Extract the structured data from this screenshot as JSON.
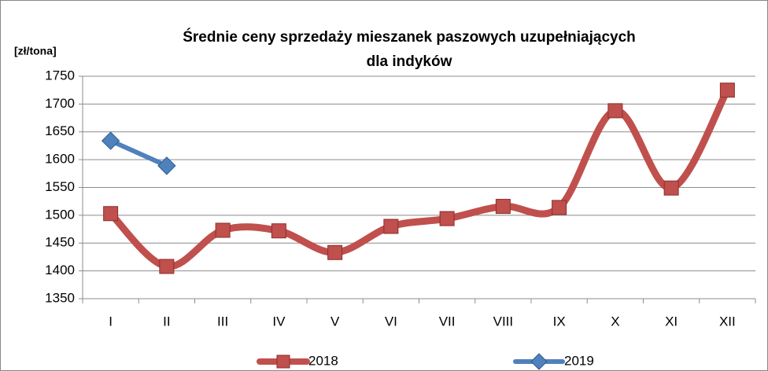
{
  "chart_data": {
    "type": "line",
    "title": [
      "Średnie ceny sprzedaży mieszanek paszowych uzupełniających",
      "dla indyków"
    ],
    "y_label": "[zł/tona]",
    "categories": [
      "I",
      "II",
      "III",
      "IV",
      "V",
      "VI",
      "VII",
      "VIII",
      "IX",
      "X",
      "XI",
      "XII"
    ],
    "series": [
      {
        "name": "2018",
        "color": "#c0504d",
        "marker": "square",
        "smooth": true,
        "values": [
          1503,
          1408,
          1473,
          1472,
          1433,
          1480,
          1494,
          1516,
          1514,
          1688,
          1549,
          1725
        ]
      },
      {
        "name": "2019",
        "color": "#4f81bd",
        "marker": "diamond",
        "smooth": false,
        "values": [
          1634,
          1589,
          null,
          null,
          null,
          null,
          null,
          null,
          null,
          null,
          null,
          null
        ]
      }
    ],
    "ylim": [
      1350,
      1750
    ],
    "yticks": [
      1350,
      1400,
      1450,
      1500,
      1550,
      1600,
      1650,
      1700,
      1750
    ],
    "grid": true,
    "legend": "bottom"
  }
}
